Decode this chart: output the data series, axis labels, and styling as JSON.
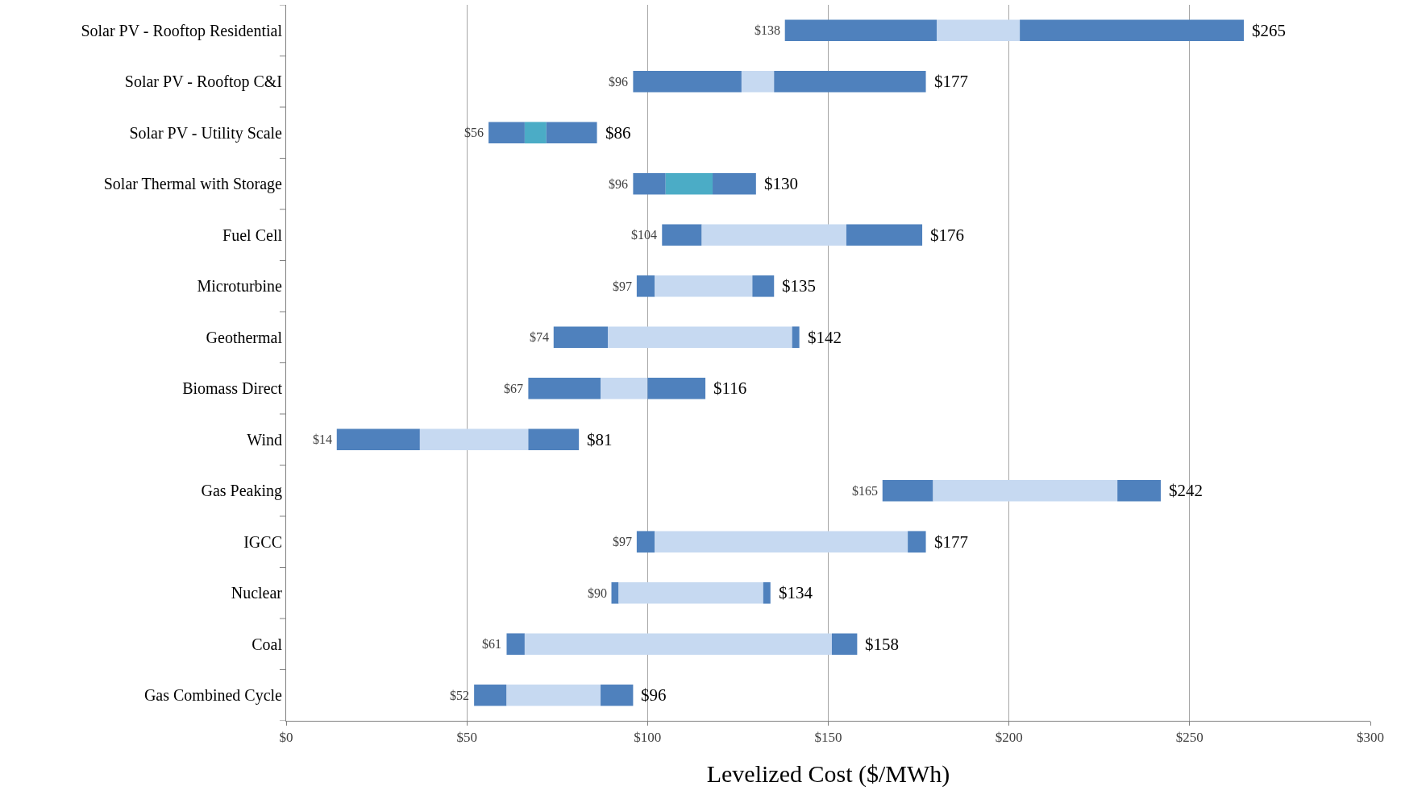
{
  "chart_data": {
    "type": "bar",
    "orientation": "horizontal",
    "xlabel": "Levelized Cost ($/MWh)",
    "categories": [
      "Solar PV - Rooftop Residential",
      "Solar PV - Rooftop C&I",
      "Solar PV - Utility Scale",
      "Solar Thermal with Storage",
      "Fuel Cell",
      "Microturbine",
      "Geothermal",
      "Biomass Direct",
      "Wind",
      "Gas Peaking",
      "IGCC",
      "Nuclear",
      "Coal",
      "Gas Combined Cycle"
    ],
    "series": [
      {
        "color": "#4f81bd",
        "base": [
          138,
          96,
          56,
          96,
          104,
          97,
          74,
          67,
          14,
          165,
          97,
          90,
          61,
          52
        ],
        "values": [
          42,
          30,
          10,
          9,
          11,
          5,
          15,
          20,
          23,
          14,
          5,
          2,
          5,
          9
        ]
      },
      {
        "color": "#c6d9f1",
        "base": [
          180,
          126,
          66,
          105,
          115,
          102,
          89,
          87,
          37,
          179,
          102,
          92,
          66,
          61
        ],
        "colors": [
          "#c6d9f1",
          "#c6d9f1",
          "#4bacc6",
          "#4bacc6",
          "#c6d9f1",
          "#c6d9f1",
          "#c6d9f1",
          "#c6d9f1",
          "#c6d9f1",
          "#c6d9f1",
          "#c6d9f1",
          "#c6d9f1",
          "#c6d9f1",
          "#c6d9f1"
        ],
        "values": [
          23,
          9,
          6,
          13,
          40,
          27,
          51,
          13,
          30,
          51,
          70,
          40,
          85,
          26
        ]
      },
      {
        "color": "#4f81bd",
        "base": [
          203,
          135,
          72,
          118,
          155,
          129,
          140,
          100,
          67,
          230,
          172,
          132,
          151,
          87
        ],
        "values": [
          62,
          42,
          14,
          12,
          21,
          6,
          2,
          16,
          14,
          12,
          5,
          2,
          7,
          9
        ]
      }
    ],
    "xlim": [
      0,
      300
    ],
    "xticks": [
      {
        "value": 0,
        "label": "$0"
      },
      {
        "value": 50,
        "label": "$50"
      },
      {
        "value": 100,
        "label": "$100"
      },
      {
        "value": 150,
        "label": "$150"
      },
      {
        "value": 200,
        "label": "$200"
      },
      {
        "value": 250,
        "label": "$250"
      },
      {
        "value": 300,
        "label": "$300"
      }
    ],
    "grid": "x",
    "annotations": [
      {
        "text": "$138",
        "x": 138,
        "y": "Solar PV - Rooftop Residential"
      },
      {
        "text": "$265",
        "x": 265,
        "y": "Solar PV - Rooftop Residential"
      },
      {
        "text": "$96",
        "x": 96,
        "y": "Solar PV - Rooftop C&I"
      },
      {
        "text": "$177",
        "x": 177,
        "y": "Solar PV - Rooftop C&I"
      },
      {
        "text": "$56",
        "x": 56,
        "y": "Solar PV - Utility Scale"
      },
      {
        "text": "$86",
        "x": 86,
        "y": "Solar PV - Utility Scale"
      },
      {
        "text": "$96",
        "x": 96,
        "y": "Solar Thermal with Storage"
      },
      {
        "text": "$130",
        "x": 130,
        "y": "Solar Thermal with Storage"
      },
      {
        "text": "$104",
        "x": 104,
        "y": "Fuel Cell"
      },
      {
        "text": "$176",
        "x": 176,
        "y": "Fuel Cell"
      },
      {
        "text": "$97",
        "x": 97,
        "y": "Microturbine"
      },
      {
        "text": "$135",
        "x": 135,
        "y": "Microturbine"
      },
      {
        "text": "$74",
        "x": 74,
        "y": "Geothermal"
      },
      {
        "text": "$142",
        "x": 142,
        "y": "Geothermal"
      },
      {
        "text": "$67",
        "x": 67,
        "y": "Biomass Direct"
      },
      {
        "text": "$116",
        "x": 116,
        "y": "Biomass Direct"
      },
      {
        "text": "$14",
        "x": 14,
        "y": "Wind"
      },
      {
        "text": "$81",
        "x": 81,
        "y": "Wind"
      },
      {
        "text": "$165",
        "x": 165,
        "y": "Gas Peaking"
      },
      {
        "text": "$242",
        "x": 242,
        "y": "Gas Peaking"
      },
      {
        "text": "$97",
        "x": 97,
        "y": "IGCC"
      },
      {
        "text": "$177",
        "x": 177,
        "y": "IGCC"
      },
      {
        "text": "$90",
        "x": 90,
        "y": "Nuclear"
      },
      {
        "text": "$134",
        "x": 134,
        "y": "Nuclear"
      },
      {
        "text": "$61",
        "x": 61,
        "y": "Coal"
      },
      {
        "text": "$158",
        "x": 158,
        "y": "Coal"
      },
      {
        "text": "$52",
        "x": 52,
        "y": "Gas Combined Cycle"
      },
      {
        "text": "$96",
        "x": 96,
        "y": "Gas Combined Cycle"
      }
    ]
  }
}
